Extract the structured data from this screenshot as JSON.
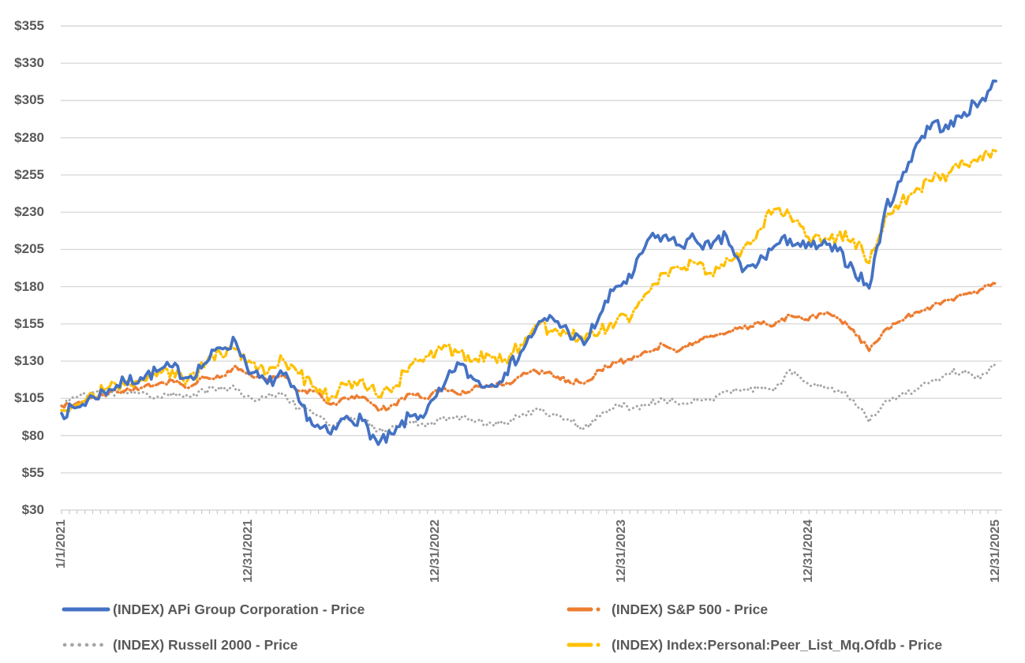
{
  "chart": {
    "y_axis": {
      "labels": [
        "$355",
        "$330",
        "$305",
        "$280",
        "$255",
        "$230",
        "$205",
        "$180",
        "$155",
        "$130",
        "$105",
        "$80",
        "$55",
        "$30"
      ],
      "min": 30,
      "max": 355,
      "step": 25,
      "prefix": "$"
    },
    "x_axis": {
      "labels": [
        "1/1/2021",
        "12/31/2021",
        "12/31/2022",
        "12/31/2023",
        "12/31/2024",
        "12/31/2025"
      ]
    },
    "colors": {
      "api_group_blue": "#4472C4",
      "sp500_orange": "#ED7D31",
      "russell_gray": "#A5A5A5",
      "peer_list_yellow": "#FFC000",
      "gridline": "#D9D9D9",
      "axis_tick": "#C9C9C9",
      "axis_text": "#595959"
    }
  },
  "chart_data": {
    "type": "line",
    "title": "",
    "xlabel": "",
    "ylabel": "",
    "ylim": [
      30,
      355
    ],
    "y_tick_step": 25,
    "grid": "horizontal",
    "legend_position": "bottom",
    "x_sampling": "monthly samples, 1/1/2021 through 12/31/2025 (values indexed to ~100 at start)",
    "x_tick_labels": [
      "1/1/2021",
      "12/31/2021",
      "12/31/2022",
      "12/31/2023",
      "12/31/2024",
      "12/31/2025"
    ],
    "series": [
      {
        "name": "(INDEX) APi Group Corporation - Price",
        "color": "#4472C4",
        "line_style": "solid",
        "values": [
          95,
          99,
          106,
          111,
          116,
          119,
          123,
          126,
          119,
          128,
          139,
          143,
          122,
          115,
          121,
          103,
          86,
          81,
          93,
          90,
          74,
          81,
          93,
          95,
          110,
          129,
          118,
          113,
          122,
          136,
          153,
          159,
          150,
          141,
          161,
          180,
          186,
          211,
          214,
          208,
          212,
          206,
          214,
          190,
          196,
          207,
          212,
          206,
          208,
          204,
          192,
          179,
          231,
          251,
          276,
          290,
          286,
          297,
          304,
          318
        ]
      },
      {
        "name": "(INDEX) S&P 500 - Price",
        "color": "#ED7D31",
        "line_style": "dash-dot",
        "values": [
          100,
          102,
          105,
          109,
          110,
          112,
          114,
          117,
          112,
          119,
          119,
          127,
          120,
          117,
          121,
          110,
          110,
          101,
          105,
          106,
          97,
          101,
          108,
          105,
          111,
          108,
          112,
          113,
          114,
          120,
          123,
          121,
          117,
          115,
          124,
          129,
          131,
          136,
          141,
          137,
          143,
          147,
          149,
          152,
          156,
          154,
          161,
          158,
          162,
          159,
          151,
          137,
          151,
          157,
          163,
          167,
          171,
          175,
          178,
          182
        ]
      },
      {
        "name": "(INDEX) Russell 2000 - Price",
        "color": "#A5A5A5",
        "line_style": "dotted",
        "values": [
          100,
          106,
          109,
          108,
          108,
          109,
          106,
          109,
          106,
          110,
          113,
          111,
          105,
          106,
          107,
          98,
          95,
          87,
          92,
          90,
          83,
          87,
          89,
          86,
          91,
          93,
          89,
          89,
          88,
          93,
          98,
          94,
          91,
          85,
          93,
          101,
          98,
          101,
          105,
          101,
          105,
          104,
          110,
          110,
          112,
          110,
          124,
          116,
          114,
          110,
          104,
          89,
          103,
          107,
          111,
          117,
          122,
          124,
          118,
          129
        ]
      },
      {
        "name": "(INDEX) Index:Personal:Peer_List_Mq.Ofdb - Price",
        "color": "#FFC000",
        "line_style": "dash-dot",
        "values": [
          97,
          101,
          108,
          112,
          114,
          117,
          120,
          124,
          118,
          126,
          136,
          138,
          129,
          122,
          131,
          121,
          113,
          106,
          114,
          118,
          106,
          113,
          127,
          133,
          138,
          136,
          131,
          134,
          131,
          141,
          155,
          150,
          149,
          143,
          150,
          156,
          160,
          176,
          189,
          193,
          196,
          189,
          199,
          205,
          218,
          232,
          228,
          214,
          209,
          214,
          212,
          196,
          226,
          236,
          246,
          251,
          256,
          262,
          268,
          271
        ]
      }
    ]
  }
}
